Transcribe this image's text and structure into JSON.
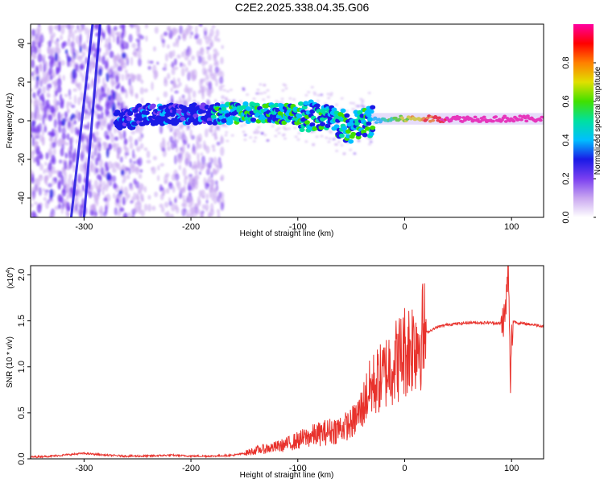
{
  "page_title": "C2E2.2025.338.04.35.G06",
  "chart_data": [
    {
      "type": "heatmap",
      "name": "spectrogram",
      "xlabel": "Height of straight line (km)",
      "ylabel": "Frequency (Hz)",
      "xlim": [
        -350,
        130
      ],
      "ylim": [
        -50,
        50
      ],
      "xticks": [
        -300,
        -200,
        -100,
        0,
        100
      ],
      "xtick_labels": [
        "-300",
        "-200",
        "-100",
        "0",
        "100"
      ],
      "yticks": [
        -40,
        -20,
        0,
        20,
        40
      ],
      "ytick_labels": [
        "-40",
        "-20",
        "0",
        "20",
        "40"
      ],
      "colorbar": {
        "label": "Normalized spectral amplitude",
        "range": [
          0,
          1
        ],
        "ticks": [
          0.0,
          0.2,
          0.4,
          0.6,
          0.8
        ],
        "tick_labels": [
          "0.0",
          "0.2",
          "0.4",
          "0.6",
          "0.8"
        ],
        "colors": [
          "#ffffff",
          "#c9a7f0",
          "#7a3ff0",
          "#1a1ae6",
          "#00bfff",
          "#00e0a0",
          "#40e000",
          "#e0e000",
          "#ff8000",
          "#ff0000",
          "#ff00a0"
        ]
      },
      "band_center": [
        {
          "x": -250,
          "y": 3
        },
        {
          "x": -150,
          "y": 4
        },
        {
          "x": -110,
          "y": 4
        },
        {
          "x": -80,
          "y": 2
        },
        {
          "x": -50,
          "y": -4
        },
        {
          "x": -30,
          "y": 0
        },
        {
          "x": 0,
          "y": 1
        },
        {
          "x": 50,
          "y": 1
        },
        {
          "x": 100,
          "y": 1
        },
        {
          "x": 130,
          "y": 1
        }
      ],
      "streaks": [
        {
          "x_bottom": -312,
          "x_top": -292
        },
        {
          "x_bottom": -300,
          "x_top": -285
        }
      ]
    },
    {
      "type": "line",
      "name": "snr",
      "xlabel": "Height of straight line (km)",
      "ylabel": "SNR (10 * v/v)",
      "scale_note": "(x10",
      "scale_exp": "4",
      "color": "#e8322c",
      "xlim": [
        -350,
        130
      ],
      "ylim": [
        0,
        2.1
      ],
      "xticks": [
        -300,
        -200,
        -100,
        0,
        100
      ],
      "xtick_labels": [
        "-300",
        "-200",
        "-100",
        "0",
        "100"
      ],
      "yticks": [
        0,
        0.5,
        1.0,
        1.5,
        2.0
      ],
      "ytick_labels": [
        "0.0",
        "0.5",
        "1.0",
        "1.5",
        "2.0"
      ],
      "series": [
        {
          "name": "SNR",
          "points": [
            [
              -350,
              0.02
            ],
            [
              -330,
              0.03
            ],
            [
              -310,
              0.05
            ],
            [
              -300,
              0.06
            ],
            [
              -280,
              0.04
            ],
            [
              -260,
              0.03
            ],
            [
              -240,
              0.03
            ],
            [
              -220,
              0.04
            ],
            [
              -200,
              0.03
            ],
            [
              -180,
              0.03
            ],
            [
              -160,
              0.04
            ],
            [
              -150,
              0.06
            ],
            [
              -140,
              0.09
            ],
            [
              -130,
              0.11
            ],
            [
              -120,
              0.13
            ],
            [
              -110,
              0.16
            ],
            [
              -100,
              0.2
            ],
            [
              -90,
              0.24
            ],
            [
              -80,
              0.27
            ],
            [
              -70,
              0.3
            ],
            [
              -60,
              0.33
            ],
            [
              -50,
              0.38
            ],
            [
              -45,
              0.45
            ],
            [
              -40,
              0.55
            ],
            [
              -35,
              0.7
            ],
            [
              -30,
              0.8
            ],
            [
              -25,
              0.85
            ],
            [
              -20,
              0.9
            ],
            [
              -15,
              1.0
            ],
            [
              -10,
              1.05
            ],
            [
              -5,
              1.1
            ],
            [
              0,
              1.18
            ],
            [
              5,
              1.22
            ],
            [
              10,
              1.28
            ],
            [
              15,
              1.33
            ],
            [
              20,
              1.37
            ],
            [
              25,
              1.4
            ],
            [
              30,
              1.43
            ],
            [
              40,
              1.46
            ],
            [
              50,
              1.47
            ],
            [
              60,
              1.48
            ],
            [
              70,
              1.48
            ],
            [
              80,
              1.48
            ],
            [
              90,
              1.47
            ],
            [
              94,
              1.55
            ],
            [
              96,
              1.9
            ],
            [
              97,
              2.1
            ],
            [
              98,
              1.4
            ],
            [
              99,
              0.78
            ],
            [
              100,
              1.3
            ],
            [
              102,
              1.5
            ],
            [
              105,
              1.48
            ],
            [
              110,
              1.47
            ],
            [
              120,
              1.46
            ],
            [
              130,
              1.44
            ]
          ]
        }
      ]
    }
  ]
}
